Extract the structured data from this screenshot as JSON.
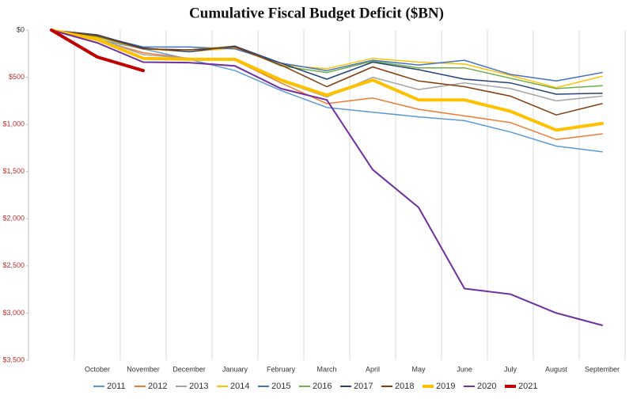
{
  "chart_data": {
    "type": "line",
    "title": "Cumulative Fiscal Budget Deficit ($BN)",
    "categories": [
      null,
      "October",
      "November",
      "December",
      "January",
      "February",
      "March",
      "April",
      "May",
      "June",
      "July",
      "August",
      "September"
    ],
    "ylim": [
      0,
      3500
    ],
    "y_inverted": true,
    "yticks": [
      {
        "value": 0,
        "label": "$0"
      },
      {
        "value": 500,
        "label": "$500"
      },
      {
        "value": 1000,
        "label": "$1,000"
      },
      {
        "value": 1500,
        "label": "$1,500"
      },
      {
        "value": 2000,
        "label": "$2,000"
      },
      {
        "value": 2500,
        "label": "$2,500"
      },
      {
        "value": 3000,
        "label": "$3,000"
      },
      {
        "value": 3500,
        "label": "$3,500"
      }
    ],
    "ytick_label_color": "#b03030",
    "zero_tick_label_color": "#333333",
    "vertical_grid": true,
    "legend": "bottom",
    "series": [
      {
        "name": "2011",
        "color": "#5b9bd5",
        "width": 1.5,
        "values": [
          0,
          100,
          200,
          310,
          430,
          640,
          820,
          870,
          920,
          960,
          1080,
          1230,
          1290
        ]
      },
      {
        "name": "2012",
        "color": "#ed7d31",
        "width": 1.5,
        "values": [
          0,
          100,
          240,
          300,
          320,
          560,
          780,
          720,
          840,
          910,
          980,
          1160,
          1100
        ]
      },
      {
        "name": "2013",
        "color": "#a5a5a5",
        "width": 1.5,
        "values": [
          0,
          90,
          260,
          300,
          300,
          540,
          710,
          500,
          630,
          560,
          620,
          750,
          700
        ]
      },
      {
        "name": "2014",
        "color": "#ffc000",
        "width": 1.5,
        "values": [
          0,
          80,
          200,
          230,
          190,
          370,
          410,
          300,
          340,
          360,
          480,
          610,
          490
        ]
      },
      {
        "name": "2015",
        "color": "#4472c4",
        "width": 1.5,
        "values": [
          0,
          60,
          180,
          180,
          200,
          350,
          430,
          320,
          370,
          320,
          470,
          540,
          450
        ]
      },
      {
        "name": "2016",
        "color": "#70ad47",
        "width": 1.5,
        "values": [
          0,
          70,
          200,
          210,
          170,
          380,
          450,
          330,
          400,
          400,
          510,
          620,
          590
        ]
      },
      {
        "name": "2017",
        "color": "#264478",
        "width": 1.5,
        "values": [
          0,
          50,
          190,
          230,
          170,
          350,
          520,
          340,
          420,
          520,
          560,
          680,
          670
        ]
      },
      {
        "name": "2018",
        "color": "#843c0c",
        "width": 1.5,
        "values": [
          0,
          60,
          200,
          210,
          180,
          370,
          600,
          390,
          540,
          600,
          700,
          900,
          780
        ]
      },
      {
        "name": "2019",
        "color": "#ffc000",
        "width": 4,
        "values": [
          0,
          100,
          300,
          310,
          310,
          530,
          690,
          530,
          740,
          740,
          860,
          1060,
          990
        ]
      },
      {
        "name": "2020",
        "color": "#7030a0",
        "width": 2,
        "values": [
          0,
          135,
          340,
          345,
          380,
          620,
          740,
          1480,
          1880,
          2740,
          2800,
          3000,
          3130
        ]
      },
      {
        "name": "2021",
        "color": "#c00000",
        "width": 4,
        "values": [
          0,
          285,
          430,
          null,
          null,
          null,
          null,
          null,
          null,
          null,
          null,
          null,
          null
        ]
      }
    ]
  }
}
